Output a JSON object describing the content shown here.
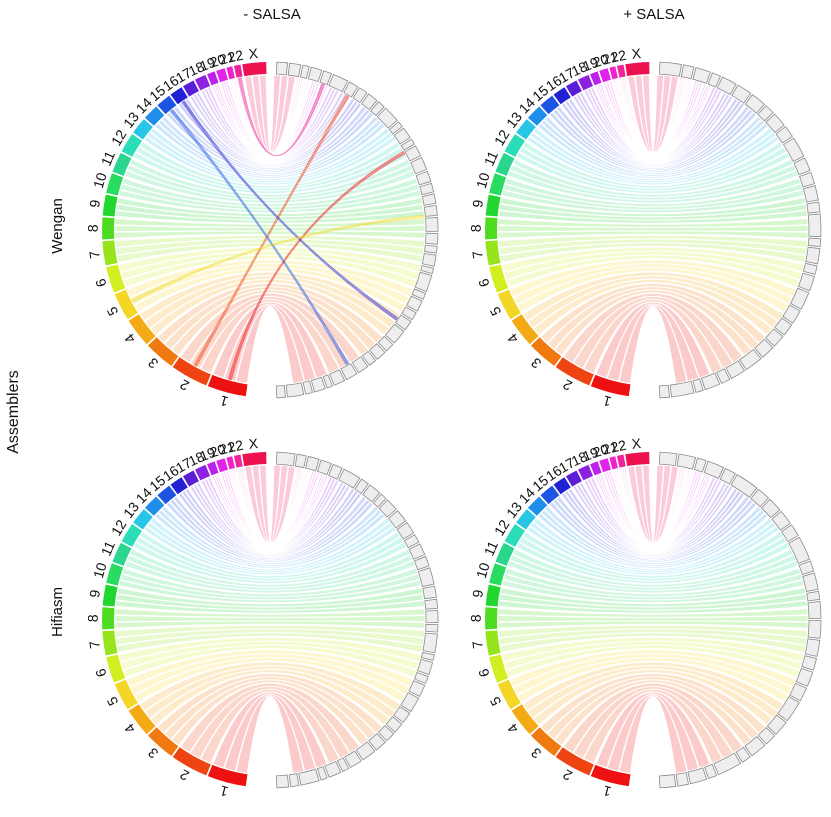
{
  "y_axis_title": "Assemblers",
  "column_titles": [
    "- SALSA",
    "+ SALSA"
  ],
  "row_titles": [
    "Wengan",
    "Hifiasm"
  ],
  "chromosome_labels": [
    "1",
    "2",
    "3",
    "4",
    "5",
    "6",
    "7",
    "8",
    "9",
    "10",
    "11",
    "12",
    "13",
    "14",
    "15",
    "16",
    "17",
    "18",
    "19",
    "20",
    "21",
    "22",
    "X"
  ],
  "chromosome_colors": [
    "#ee1111",
    "#ee4411",
    "#f07a10",
    "#f4aa14",
    "#f4d626",
    "#d2ee20",
    "#96e41c",
    "#4ddc20",
    "#22d630",
    "#28dc62",
    "#2ad68e",
    "#2adcb8",
    "#28c6e6",
    "#1e8eea",
    "#1e54e4",
    "#2020d4",
    "#5a1ed6",
    "#8c22e0",
    "#bc22ea",
    "#e022ea",
    "#ee22cc",
    "#ee2299",
    "#ee1150"
  ],
  "chart_data": [
    {
      "type": "circos",
      "panel": "Wengan - SALSA",
      "row": "Wengan",
      "column": "- SALSA",
      "chromosomes": [
        "1",
        "2",
        "3",
        "4",
        "5",
        "6",
        "7",
        "8",
        "9",
        "10",
        "11",
        "12",
        "13",
        "14",
        "15",
        "16",
        "17",
        "18",
        "19",
        "20",
        "21",
        "22",
        "X"
      ],
      "scaffold_count": 42
    },
    {
      "type": "circos",
      "panel": "Wengan + SALSA",
      "row": "Wengan",
      "column": "+ SALSA",
      "chromosomes": [
        "1",
        "2",
        "3",
        "4",
        "5",
        "6",
        "7",
        "8",
        "9",
        "10",
        "11",
        "12",
        "13",
        "14",
        "15",
        "16",
        "17",
        "18",
        "19",
        "20",
        "21",
        "22",
        "X"
      ],
      "scaffold_count": 32
    },
    {
      "type": "circos",
      "panel": "Hifiasm - SALSA",
      "row": "Hifiasm",
      "column": "- SALSA",
      "chromosomes": [
        "1",
        "2",
        "3",
        "4",
        "5",
        "6",
        "7",
        "8",
        "9",
        "10",
        "11",
        "12",
        "13",
        "14",
        "15",
        "16",
        "17",
        "18",
        "19",
        "20",
        "21",
        "22",
        "X"
      ],
      "scaffold_count": 38
    },
    {
      "type": "circos",
      "panel": "Hifiasm + SALSA",
      "row": "Hifiasm",
      "column": "+ SALSA",
      "chromosomes": [
        "1",
        "2",
        "3",
        "4",
        "5",
        "6",
        "7",
        "8",
        "9",
        "10",
        "11",
        "12",
        "13",
        "14",
        "15",
        "16",
        "17",
        "18",
        "19",
        "20",
        "21",
        "22",
        "X"
      ],
      "scaffold_count": 30
    }
  ]
}
